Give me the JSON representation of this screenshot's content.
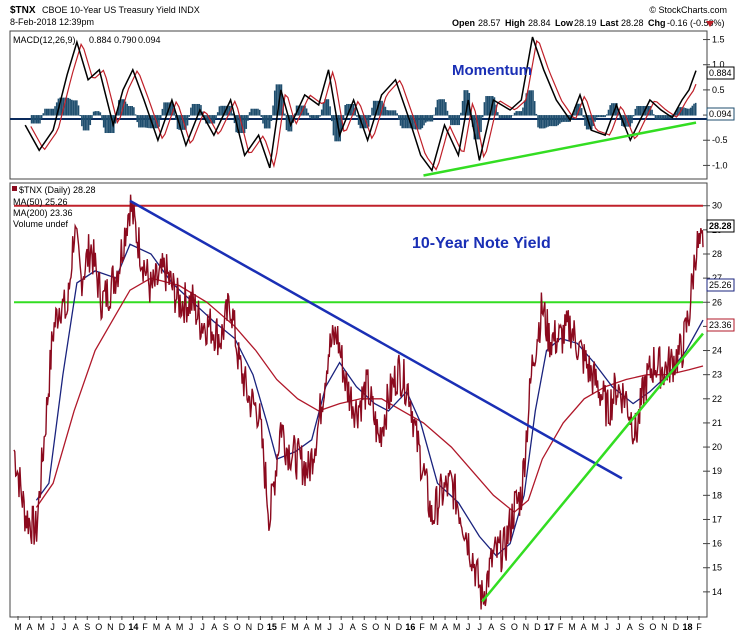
{
  "header": {
    "symbol": "$TNX",
    "name": "CBOE 10-Year US Treasury Yield INDX",
    "date": "8-Feb-2018 12:39pm",
    "watermark": "© StockCharts.com",
    "open_label": "Open",
    "open": "28.57",
    "high_label": "High",
    "high": "28.84",
    "low_label": "Low",
    "low": "28.19",
    "last_label": "Last",
    "last": "28.28",
    "chg_label": "Chg",
    "chg": "-0.16 (-0.56%)"
  },
  "macd_panel": {
    "legend_name": "MACD(12,26,9)",
    "legend_v1": "0.884",
    "legend_v2": "0.790",
    "legend_v3": "0.094",
    "annotation": "Momentum",
    "value_tag_macd": "0.884",
    "value_tag_hist": "0.094",
    "colors": {
      "macd": "#000000",
      "signal": "#c0212a",
      "histogram": "#1f4e6e",
      "trendline": "#33dd22"
    }
  },
  "price_panel": {
    "legend_daily": "$TNX (Daily) 28.28",
    "legend_ma50": "MA(50) 25.26",
    "legend_ma200": "MA(200) 23.36",
    "legend_volume": "Volume undef",
    "annotation": "10-Year Note Yield",
    "tag_last": "28.28",
    "tag_ma50": "25.26",
    "tag_ma200": "23.36",
    "colors": {
      "price": "#8b0a1e",
      "ma50": "#1a237e",
      "ma200": "#b0182a",
      "downtrend": "#1a2fb5",
      "uptrend": "#33dd22",
      "resistance": "#c0212a",
      "support": "#33dd22"
    }
  },
  "chart_data": [
    {
      "type": "line",
      "name": "MACD",
      "ylim": [
        -1.25,
        1.65
      ],
      "yticks": [
        -1.0,
        -0.5,
        0.0,
        0.5,
        1.0,
        1.5
      ],
      "legend": "top-left",
      "x_range": [
        "2013-03",
        "2018-02"
      ],
      "series": [
        {
          "name": "MACD(12,26,9)",
          "last": 0.884,
          "points": [
            [
              2013.25,
              -0.2
            ],
            [
              2013.35,
              -0.7
            ],
            [
              2013.45,
              -0.3
            ],
            [
              2013.55,
              0.8
            ],
            [
              2013.62,
              1.45
            ],
            [
              2013.7,
              0.7
            ],
            [
              2013.78,
              0.9
            ],
            [
              2013.88,
              -0.2
            ],
            [
              2013.95,
              0.5
            ],
            [
              2014.02,
              0.9
            ],
            [
              2014.1,
              0.3
            ],
            [
              2014.2,
              -0.5
            ],
            [
              2014.3,
              0.3
            ],
            [
              2014.4,
              -0.6
            ],
            [
              2014.5,
              0.1
            ],
            [
              2014.6,
              -0.4
            ],
            [
              2014.72,
              0.3
            ],
            [
              2014.82,
              -0.8
            ],
            [
              2014.92,
              -0.4
            ],
            [
              2015.0,
              -1.05
            ],
            [
              2015.08,
              0.5
            ],
            [
              2015.15,
              -0.2
            ],
            [
              2015.25,
              0.4
            ],
            [
              2015.35,
              0.2
            ],
            [
              2015.42,
              0.9
            ],
            [
              2015.5,
              -0.4
            ],
            [
              2015.6,
              0.3
            ],
            [
              2015.7,
              -0.5
            ],
            [
              2015.8,
              0.4
            ],
            [
              2015.9,
              0.7
            ],
            [
              2016.0,
              -0.1
            ],
            [
              2016.08,
              -0.8
            ],
            [
              2016.16,
              -1.1
            ],
            [
              2016.25,
              -0.2
            ],
            [
              2016.35,
              -0.8
            ],
            [
              2016.42,
              0.3
            ],
            [
              2016.5,
              -0.9
            ],
            [
              2016.6,
              0.3
            ],
            [
              2016.72,
              0.1
            ],
            [
              2016.8,
              0.3
            ],
            [
              2016.88,
              1.55
            ],
            [
              2016.96,
              0.9
            ],
            [
              2017.05,
              0.3
            ],
            [
              2017.15,
              -0.1
            ],
            [
              2017.22,
              0.4
            ],
            [
              2017.3,
              -0.3
            ],
            [
              2017.4,
              -0.4
            ],
            [
              2017.48,
              0.2
            ],
            [
              2017.58,
              -0.5
            ],
            [
              2017.65,
              -0.1
            ],
            [
              2017.72,
              0.3
            ],
            [
              2017.8,
              0.1
            ],
            [
              2017.88,
              -0.05
            ],
            [
              2017.95,
              0.3
            ],
            [
              2018.0,
              0.5
            ],
            [
              2018.05,
              0.884
            ]
          ]
        },
        {
          "name": "Signal",
          "last": 0.79
        },
        {
          "name": "Histogram",
          "last": 0.094
        }
      ],
      "trendlines": [
        {
          "from": [
            2016.1,
            -1.2
          ],
          "to": [
            2018.05,
            -0.15
          ]
        }
      ]
    },
    {
      "type": "line",
      "name": "$TNX",
      "ylim": [
        13.0,
        30.9
      ],
      "yticks": [
        14,
        15,
        16,
        17,
        18,
        19,
        20,
        21,
        22,
        23,
        24,
        25,
        26,
        27,
        28,
        29,
        30
      ],
      "legend": "top-left",
      "x_range": [
        "2013-03",
        "2018-02"
      ],
      "x_tick_labels": [
        "M",
        "A",
        "M",
        "J",
        "J",
        "A",
        "S",
        "O",
        "N",
        "D",
        "14",
        "F",
        "M",
        "A",
        "M",
        "J",
        "J",
        "A",
        "S",
        "O",
        "N",
        "D",
        "15",
        "F",
        "M",
        "A",
        "M",
        "J",
        "J",
        "A",
        "S",
        "O",
        "N",
        "D",
        "16",
        "F",
        "M",
        "A",
        "M",
        "J",
        "J",
        "A",
        "S",
        "O",
        "N",
        "D",
        "17",
        "F",
        "M",
        "A",
        "M",
        "J",
        "J",
        "A",
        "S",
        "O",
        "N",
        "D",
        "18",
        "F"
      ],
      "series": [
        {
          "name": "$TNX (Daily)",
          "last": 28.28,
          "points": [
            [
              2013.17,
              19.9
            ],
            [
              2013.25,
              17.2
            ],
            [
              2013.33,
              16.5
            ],
            [
              2013.4,
              21.3
            ],
            [
              2013.45,
              24.8
            ],
            [
              2013.5,
              26.0
            ],
            [
              2013.55,
              25.5
            ],
            [
              2013.6,
              29.0
            ],
            [
              2013.65,
              27.0
            ],
            [
              2013.72,
              28.3
            ],
            [
              2013.8,
              26.0
            ],
            [
              2013.85,
              26.5
            ],
            [
              2013.92,
              27.5
            ],
            [
              2014.0,
              30.1
            ],
            [
              2014.08,
              28.0
            ],
            [
              2014.15,
              26.5
            ],
            [
              2014.25,
              27.3
            ],
            [
              2014.35,
              26.0
            ],
            [
              2014.45,
              26.0
            ],
            [
              2014.5,
              25.2
            ],
            [
              2014.58,
              25.0
            ],
            [
              2014.65,
              24.5
            ],
            [
              2014.72,
              26.0
            ],
            [
              2014.78,
              23.5
            ],
            [
              2014.85,
              22.0
            ],
            [
              2014.92,
              21.5
            ],
            [
              2015.0,
              17.0
            ],
            [
              2015.08,
              21.0
            ],
            [
              2015.12,
              20.0
            ],
            [
              2015.2,
              19.5
            ],
            [
              2015.28,
              19.0
            ],
            [
              2015.35,
              21.0
            ],
            [
              2015.42,
              24.0
            ],
            [
              2015.48,
              24.7
            ],
            [
              2015.55,
              22.5
            ],
            [
              2015.62,
              21.5
            ],
            [
              2015.7,
              22.5
            ],
            [
              2015.78,
              20.3
            ],
            [
              2015.85,
              22.0
            ],
            [
              2015.92,
              23.2
            ],
            [
              2016.0,
              22.3
            ],
            [
              2016.05,
              20.3
            ],
            [
              2016.1,
              19.0
            ],
            [
              2016.16,
              17.0
            ],
            [
              2016.22,
              18.0
            ],
            [
              2016.3,
              18.5
            ],
            [
              2016.38,
              17.0
            ],
            [
              2016.45,
              15.5
            ],
            [
              2016.52,
              13.7
            ],
            [
              2016.6,
              15.5
            ],
            [
              2016.68,
              15.8
            ],
            [
              2016.75,
              17.5
            ],
            [
              2016.8,
              18.0
            ],
            [
              2016.88,
              23.5
            ],
            [
              2016.95,
              25.8
            ],
            [
              2017.0,
              24.5
            ],
            [
              2017.08,
              24.5
            ],
            [
              2017.15,
              25.0
            ],
            [
              2017.22,
              24.0
            ],
            [
              2017.3,
              23.0
            ],
            [
              2017.35,
              22.5
            ],
            [
              2017.42,
              21.5
            ],
            [
              2017.48,
              22.5
            ],
            [
              2017.55,
              22.0
            ],
            [
              2017.62,
              20.5
            ],
            [
              2017.68,
              22.5
            ],
            [
              2017.75,
              23.5
            ],
            [
              2017.82,
              23.2
            ],
            [
              2017.88,
              23.5
            ],
            [
              2017.95,
              24.0
            ],
            [
              2018.0,
              25.5
            ],
            [
              2018.05,
              28.3
            ],
            [
              2018.1,
              28.28
            ]
          ]
        },
        {
          "name": "MA(50)",
          "last": 25.26,
          "points": [
            [
              2013.33,
              17.8
            ],
            [
              2013.42,
              18.5
            ],
            [
              2013.52,
              23.0
            ],
            [
              2013.62,
              26.8
            ],
            [
              2013.75,
              27.3
            ],
            [
              2013.9,
              27.0
            ],
            [
              2014.0,
              28.4
            ],
            [
              2014.15,
              28.0
            ],
            [
              2014.3,
              26.8
            ],
            [
              2014.45,
              26.0
            ],
            [
              2014.6,
              25.2
            ],
            [
              2014.75,
              24.5
            ],
            [
              2014.88,
              23.0
            ],
            [
              2014.98,
              21.0
            ],
            [
              2015.05,
              19.5
            ],
            [
              2015.18,
              19.8
            ],
            [
              2015.3,
              20.3
            ],
            [
              2015.4,
              22.5
            ],
            [
              2015.5,
              23.5
            ],
            [
              2015.62,
              22.5
            ],
            [
              2015.75,
              21.8
            ],
            [
              2015.85,
              21.5
            ],
            [
              2015.98,
              22.3
            ],
            [
              2016.08,
              21.0
            ],
            [
              2016.2,
              18.5
            ],
            [
              2016.35,
              17.7
            ],
            [
              2016.5,
              16.3
            ],
            [
              2016.62,
              15.5
            ],
            [
              2016.72,
              16.0
            ],
            [
              2016.82,
              18.0
            ],
            [
              2016.9,
              21.5
            ],
            [
              2016.98,
              24.0
            ],
            [
              2017.08,
              24.5
            ],
            [
              2017.2,
              24.3
            ],
            [
              2017.32,
              23.5
            ],
            [
              2017.45,
              22.5
            ],
            [
              2017.6,
              21.8
            ],
            [
              2017.72,
              22.3
            ],
            [
              2017.85,
              23.0
            ],
            [
              2017.98,
              24.0
            ],
            [
              2018.1,
              25.26
            ]
          ]
        },
        {
          "name": "MA(200)",
          "last": 23.36,
          "points": [
            [
              2013.33,
              17.5
            ],
            [
              2013.45,
              18.5
            ],
            [
              2013.6,
              21.5
            ],
            [
              2013.75,
              24.0
            ],
            [
              2013.9,
              25.5
            ],
            [
              2014.0,
              26.5
            ],
            [
              2014.15,
              27.0
            ],
            [
              2014.35,
              26.7
            ],
            [
              2014.55,
              26.0
            ],
            [
              2014.75,
              25.0
            ],
            [
              2014.9,
              24.0
            ],
            [
              2015.05,
              22.8
            ],
            [
              2015.2,
              22.0
            ],
            [
              2015.35,
              21.5
            ],
            [
              2015.5,
              21.8
            ],
            [
              2015.65,
              22.0
            ],
            [
              2015.8,
              22.0
            ],
            [
              2015.95,
              21.5
            ],
            [
              2016.1,
              21.0
            ],
            [
              2016.3,
              20.0
            ],
            [
              2016.45,
              19.0
            ],
            [
              2016.6,
              18.0
            ],
            [
              2016.75,
              17.3
            ],
            [
              2016.85,
              17.8
            ],
            [
              2016.95,
              19.5
            ],
            [
              2017.1,
              21.0
            ],
            [
              2017.25,
              22.0
            ],
            [
              2017.4,
              22.5
            ],
            [
              2017.55,
              22.8
            ],
            [
              2017.7,
              23.0
            ],
            [
              2017.85,
              23.0
            ],
            [
              2018.0,
              23.2
            ],
            [
              2018.1,
              23.36
            ]
          ]
        }
      ],
      "trendlines": [
        {
          "name": "downtrend",
          "from": [
            2014.0,
            30.2
          ],
          "to": [
            2017.52,
            18.7
          ]
        },
        {
          "name": "uptrend",
          "from": [
            2016.52,
            13.6
          ],
          "to": [
            2018.1,
            24.7
          ]
        },
        {
          "name": "resistance",
          "from": [
            2013.17,
            30.0
          ],
          "to": [
            2018.1,
            30.0
          ]
        },
        {
          "name": "support",
          "from": [
            2013.17,
            26.0
          ],
          "to": [
            2018.1,
            26.0
          ]
        }
      ]
    }
  ]
}
